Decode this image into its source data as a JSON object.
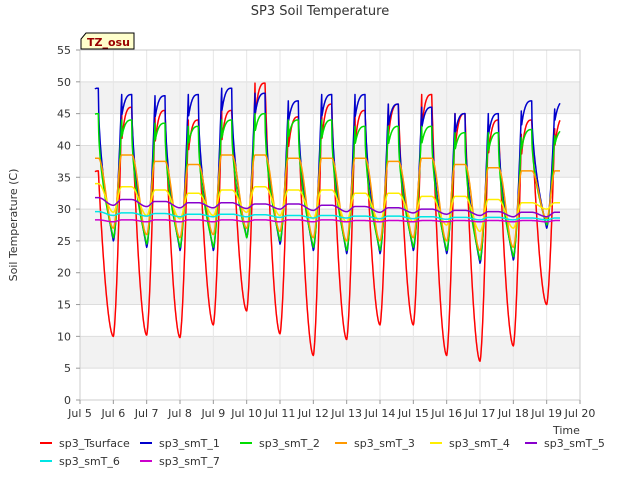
{
  "chart_data": {
    "type": "line",
    "title": "SP3 Soil Temperature",
    "xlabel": "Time",
    "ylabel": "Soil Temperature (C)",
    "xlim": [
      5.0,
      20.0
    ],
    "ylim": [
      0,
      55
    ],
    "x_ticks": [
      5,
      6,
      7,
      8,
      9,
      10,
      11,
      12,
      13,
      14,
      15,
      16,
      17,
      18,
      19,
      20
    ],
    "x_tick_labels": [
      "Jul 5",
      "Jul 6",
      "Jul 7",
      "Jul 8",
      "Jul 9",
      "Jul 10",
      "Jul 11",
      "Jul 12",
      "Jul 13",
      "Jul 14",
      "Jul 15",
      "Jul 16",
      "Jul 17",
      "Jul 18",
      "Jul 19",
      "Jul 20"
    ],
    "y_ticks": [
      0,
      5,
      10,
      15,
      20,
      25,
      30,
      35,
      40,
      45,
      50,
      55
    ],
    "y_tick_labels": [
      "0",
      "5",
      "10",
      "15",
      "20",
      "25",
      "30",
      "35",
      "40",
      "45",
      "50",
      "55"
    ],
    "grid": true,
    "badge": "TZ_osu",
    "legend_position": "bottom",
    "x_start": 5.45,
    "x_end": 19.4,
    "day_peak_offset": 0.55,
    "series": [
      {
        "name": "sp3_Tsurface",
        "color": "#ff0000",
        "mins": [
          14.2,
          10.0,
          10.2,
          9.8,
          11.8,
          14.0,
          10.4,
          7.0,
          9.5,
          11.8,
          11.8,
          7.0,
          6.1,
          8.5,
          15.0
        ],
        "peaks": [
          36.0,
          46.0,
          45.5,
          44.0,
          45.5,
          49.8,
          44.5,
          46.5,
          45.5,
          46.5,
          48.0,
          45.0,
          44.0,
          44.0,
          44.5
        ]
      },
      {
        "name": "sp3_smT_1",
        "color": "#0000cc",
        "mins": [
          27.0,
          25.0,
          24.0,
          23.5,
          23.5,
          25.5,
          24.5,
          23.5,
          23.0,
          23.0,
          23.5,
          23.0,
          21.5,
          22.0,
          27.0
        ],
        "peaks": [
          49.0,
          48.0,
          47.8,
          48.0,
          49.0,
          48.2,
          47.0,
          48.0,
          48.0,
          46.5,
          46.0,
          45.0,
          45.0,
          47.0,
          47.0
        ]
      },
      {
        "name": "sp3_smT_2",
        "color": "#00dd00",
        "mins": [
          28.0,
          25.5,
          24.5,
          24.0,
          24.0,
          25.5,
          25.0,
          24.0,
          23.5,
          23.5,
          24.0,
          23.5,
          22.0,
          22.5,
          27.5
        ],
        "peaks": [
          45.0,
          44.0,
          43.5,
          43.0,
          44.0,
          45.0,
          44.0,
          44.0,
          43.0,
          43.0,
          43.0,
          42.0,
          42.0,
          42.5,
          42.5
        ]
      },
      {
        "name": "sp3_smT_3",
        "color": "#ff9900",
        "mins": [
          30.0,
          27.0,
          26.0,
          25.5,
          26.0,
          27.0,
          26.5,
          25.5,
          25.0,
          25.0,
          25.5,
          25.0,
          23.5,
          24.0,
          28.5
        ],
        "peaks": [
          38.0,
          38.5,
          37.5,
          37.0,
          38.5,
          38.5,
          38.0,
          38.0,
          38.0,
          37.5,
          38.0,
          37.0,
          36.5,
          36.0,
          36.0
        ]
      },
      {
        "name": "sp3_smT_4",
        "color": "#ffee00",
        "mins": [
          31.5,
          29.5,
          29.0,
          28.5,
          29.0,
          29.5,
          29.0,
          28.5,
          28.0,
          28.0,
          28.0,
          27.5,
          26.5,
          27.0,
          30.0
        ],
        "peaks": [
          34.0,
          33.5,
          33.0,
          32.5,
          33.0,
          33.5,
          33.0,
          33.0,
          32.5,
          32.5,
          32.0,
          32.0,
          31.5,
          31.0,
          31.0
        ]
      },
      {
        "name": "sp3_smT_5",
        "color": "#8800cc",
        "mins": [
          30.8,
          30.6,
          30.4,
          30.2,
          30.2,
          30.1,
          30.0,
          29.8,
          29.6,
          29.5,
          29.4,
          29.2,
          29.0,
          28.8,
          28.8
        ],
        "peaks": [
          31.8,
          31.5,
          31.2,
          31.0,
          31.0,
          30.8,
          30.8,
          30.6,
          30.4,
          30.2,
          30.0,
          29.8,
          29.6,
          29.5,
          29.5
        ]
      },
      {
        "name": "sp3_smT_6",
        "color": "#00e5e5",
        "mins": [
          29.2,
          29.0,
          28.9,
          28.8,
          28.8,
          28.8,
          28.7,
          28.6,
          28.6,
          28.5,
          28.5,
          28.4,
          28.3,
          28.3,
          28.3
        ],
        "peaks": [
          29.6,
          29.4,
          29.3,
          29.2,
          29.2,
          29.1,
          29.0,
          29.0,
          28.9,
          28.9,
          28.8,
          28.7,
          28.7,
          28.6,
          28.6
        ]
      },
      {
        "name": "sp3_smT_7",
        "color": "#cc00cc",
        "mins": [
          28.0,
          28.0,
          28.0,
          28.0,
          28.0,
          28.0,
          28.0,
          28.0,
          28.0,
          28.0,
          28.0,
          28.0,
          28.0,
          28.0,
          28.0
        ],
        "peaks": [
          28.3,
          28.3,
          28.3,
          28.3,
          28.3,
          28.3,
          28.3,
          28.3,
          28.2,
          28.2,
          28.2,
          28.2,
          28.2,
          28.2,
          28.2
        ]
      }
    ]
  }
}
